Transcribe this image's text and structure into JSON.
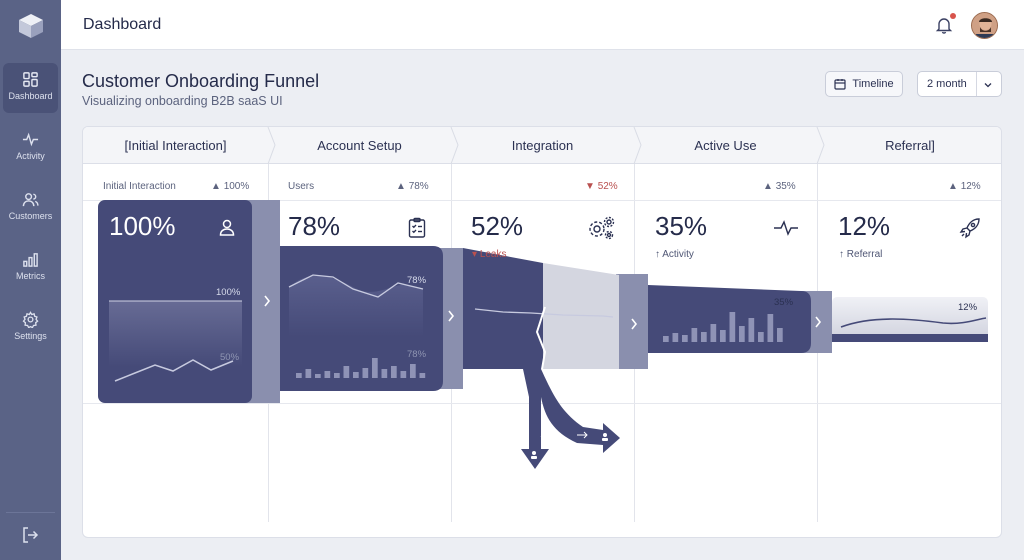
{
  "sidebar": {
    "items": [
      {
        "label": "Dashboard",
        "icon": "dashboard-icon",
        "active": true
      },
      {
        "label": "Activity",
        "icon": "activity-icon",
        "active": false
      },
      {
        "label": "Customers",
        "icon": "customers-icon",
        "active": false
      },
      {
        "label": "Metrics",
        "icon": "metrics-icon",
        "active": false
      },
      {
        "label": "Settings",
        "icon": "settings-icon",
        "active": false
      }
    ],
    "logout_icon": "logout-icon"
  },
  "header": {
    "title": "Dashboard",
    "has_notification": true
  },
  "page": {
    "title": "Customer Onboarding Funnel",
    "subtitle": "Visualizing onboarding B2B saaS UI",
    "timeline_label": "Timeline",
    "period_value": "2 month"
  },
  "colors": {
    "sidebar": "#5a6386",
    "funnel_dark": "#454a78",
    "funnel_mid": "#858aa8",
    "funnel_light": "#d4d6e0",
    "leak": "#b9504f"
  },
  "stages": [
    {
      "tab": "[Initial Interaction]",
      "metric_label": "Initial Interaction",
      "change": "100%",
      "change_dir": "up",
      "value": "100%",
      "icon": "user-icon",
      "chart_top_label": "100%",
      "chart_bottom_label": "50%"
    },
    {
      "tab": "Account Setup",
      "metric_label": "Users",
      "change": "78%",
      "change_dir": "up",
      "value": "78%",
      "icon": "clipboard-check-icon",
      "chart_top_label": "78%",
      "chart_bottom_label": "78%"
    },
    {
      "tab": "Integration",
      "metric_label": "",
      "change": "52%",
      "change_dir": "down",
      "value": "52%",
      "icon": "gears-icon",
      "sub_label": "Leaks"
    },
    {
      "tab": "Active Use",
      "metric_label": "",
      "change": "35%",
      "change_dir": "up",
      "value": "35%",
      "icon": "pulse-icon",
      "sub_label": "Activity",
      "chart_top_label": "35%"
    },
    {
      "tab": "Referral]",
      "metric_label": "",
      "change": "12%",
      "change_dir": "up",
      "value": "12%",
      "icon": "rocket-icon",
      "sub_label": "Referral",
      "chart_top_label": "12%"
    }
  ]
}
